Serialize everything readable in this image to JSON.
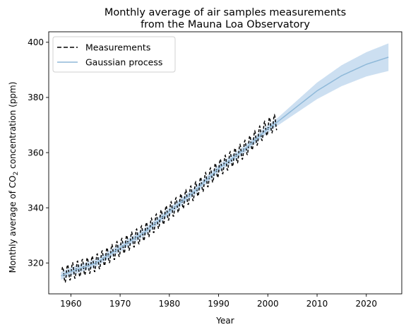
{
  "chart_data": {
    "type": "line",
    "title": [
      "Monthly average of air samples measurements",
      "from the Mauna Loa Observatory"
    ],
    "xlabel": "Year",
    "ylabel": {
      "prefix": "Monthly average of CO",
      "subscript": "2",
      "suffix": " concentration (ppm)"
    },
    "xlim": [
      1955.5,
      2027.2
    ],
    "ylim": [
      308.8,
      403.8
    ],
    "xticks": [
      1960,
      1970,
      1980,
      1990,
      2000,
      2010,
      2020
    ],
    "yticks": [
      320,
      340,
      360,
      380,
      400
    ],
    "grid": false,
    "legend": {
      "placement": "top-left"
    },
    "series": [
      {
        "name": "Measurements",
        "style": "dashed",
        "color": "#000000",
        "x_start": 1958.2,
        "x_end": 2001.9,
        "step": 0.0833,
        "trend_points": [
          [
            1958,
            315.3
          ],
          [
            1960,
            316.9
          ],
          [
            1965,
            319.9
          ],
          [
            1970,
            325.5
          ],
          [
            1975,
            331.2
          ],
          [
            1980,
            338.7
          ],
          [
            1985,
            345.8
          ],
          [
            1990,
            354.2
          ],
          [
            1995,
            360.8
          ],
          [
            2000,
            369.4
          ],
          [
            2001.9,
            371.2
          ]
        ],
        "seasonal_amplitude": 3.0
      },
      {
        "name": "Gaussian process",
        "style": "solid",
        "color": "#8fb9d9",
        "band_color": "#c6dcef",
        "points": [
          [
            1958,
            315.3
          ],
          [
            1960,
            316.9
          ],
          [
            1965,
            319.9
          ],
          [
            1970,
            325.5
          ],
          [
            1975,
            331.2
          ],
          [
            1980,
            338.7
          ],
          [
            1985,
            345.8
          ],
          [
            1990,
            354.2
          ],
          [
            1995,
            360.8
          ],
          [
            2000,
            368.6
          ],
          [
            2002,
            371.2
          ],
          [
            2005,
            375.4
          ],
          [
            2010,
            382.4
          ],
          [
            2015,
            387.9
          ],
          [
            2020,
            392.0
          ],
          [
            2024.5,
            394.6
          ]
        ],
        "band_halfwidth": [
          [
            1958,
            1.4
          ],
          [
            2002,
            1.4
          ],
          [
            2005,
            2.0
          ],
          [
            2010,
            3.0
          ],
          [
            2015,
            3.8
          ],
          [
            2020,
            4.4
          ],
          [
            2024.5,
            5.0
          ]
        ]
      }
    ]
  }
}
